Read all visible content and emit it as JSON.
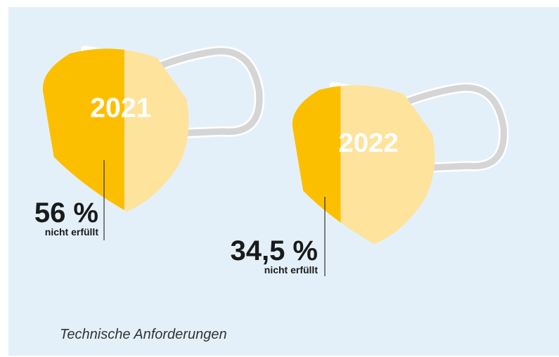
{
  "chart_data": {
    "type": "mask",
    "categories": [
      "2021",
      "2022"
    ],
    "values": [
      56,
      34.5
    ],
    "value_labels": [
      "56 %",
      "34,5 %"
    ],
    "annotation": "nicht erfüllt",
    "caption": "Technische Anforderungen",
    "ylim": [
      0,
      100
    ],
    "color": "#fbbf00",
    "rest_color": "#fde39b"
  }
}
